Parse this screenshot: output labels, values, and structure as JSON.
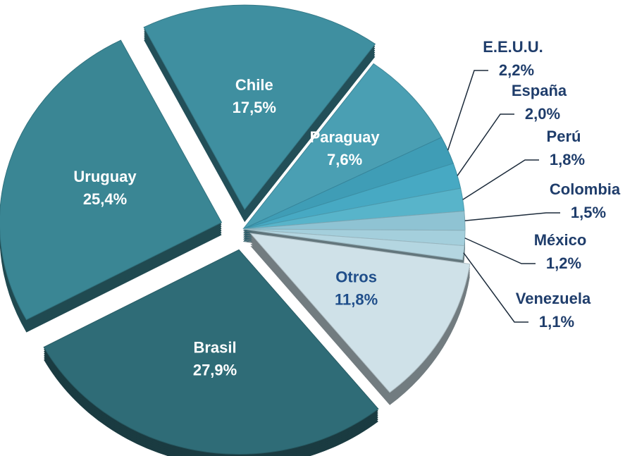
{
  "chart_data": {
    "type": "pie",
    "categories": [
      "Chile",
      "Paraguay",
      "E.E.U.U.",
      "España",
      "Perú",
      "Colombia",
      "México",
      "Venezuela",
      "Otros",
      "Brasil",
      "Uruguay"
    ],
    "values": [
      17.5,
      7.6,
      2.2,
      2.0,
      1.8,
      1.5,
      1.2,
      1.1,
      11.8,
      27.9,
      25.4
    ],
    "value_labels": [
      "17,5%",
      "7,6%",
      "2,2%",
      "2,0%",
      "1,8%",
      "1,5%",
      "1,2%",
      "1,1%",
      "11,8%",
      "27,9%",
      "25,4%"
    ],
    "colors": [
      "#3f8fa0",
      "#4a9fb3",
      "#3f9db6",
      "#47a9c3",
      "#58b4ca",
      "#8fc3d3",
      "#a4cfdc",
      "#b4d6e1",
      "#cfe1e8",
      "#2f6c77",
      "#3a8694"
    ]
  }
}
